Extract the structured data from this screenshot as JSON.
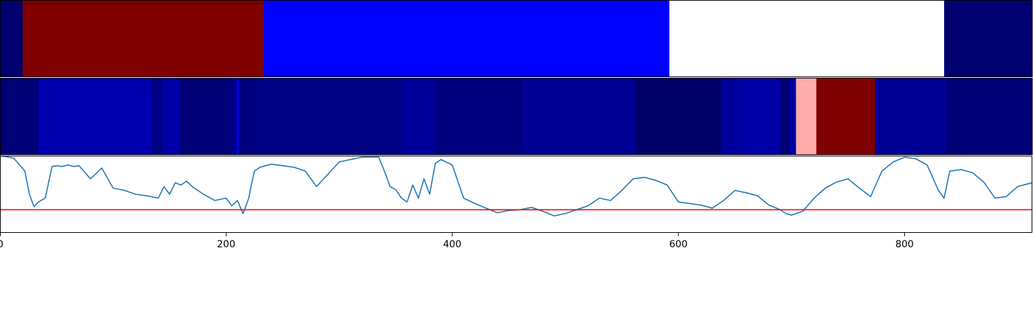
{
  "chart_data": [
    {
      "type": "heatmap",
      "colormap": "seismic",
      "xlim": [
        0,
        913
      ],
      "clim": [
        0,
        1
      ],
      "segments": [
        {
          "start": 0,
          "end": 20,
          "value": 0.05
        },
        {
          "start": 20,
          "end": 233,
          "value": 1.0
        },
        {
          "start": 233,
          "end": 592,
          "value": 0.25
        },
        {
          "start": 592,
          "end": 835,
          "value": 0.5
        },
        {
          "start": 835,
          "end": 913,
          "value": 0.05
        }
      ]
    },
    {
      "type": "heatmap",
      "colormap": "seismic",
      "xlim": [
        0,
        913
      ],
      "clim": [
        0,
        1
      ],
      "segments": [
        {
          "start": 0,
          "end": 34,
          "value": 0.06
        },
        {
          "start": 34,
          "end": 134,
          "value": 0.14
        },
        {
          "start": 134,
          "end": 144,
          "value": 0.08
        },
        {
          "start": 144,
          "end": 159,
          "value": 0.13
        },
        {
          "start": 159,
          "end": 201,
          "value": 0.06
        },
        {
          "start": 201,
          "end": 209,
          "value": 0.08
        },
        {
          "start": 209,
          "end": 211,
          "value": 0.22
        },
        {
          "start": 211,
          "end": 224,
          "value": 0.07
        },
        {
          "start": 224,
          "end": 355,
          "value": 0.08
        },
        {
          "start": 355,
          "end": 385,
          "value": 0.11
        },
        {
          "start": 385,
          "end": 462,
          "value": 0.07
        },
        {
          "start": 462,
          "end": 562,
          "value": 0.1
        },
        {
          "start": 562,
          "end": 638,
          "value": 0.04
        },
        {
          "start": 638,
          "end": 655,
          "value": 0.11
        },
        {
          "start": 655,
          "end": 690,
          "value": 0.13
        },
        {
          "start": 690,
          "end": 698,
          "value": 0.06
        },
        {
          "start": 698,
          "end": 704,
          "value": 0.12
        },
        {
          "start": 704,
          "end": 722,
          "value": 0.58
        },
        {
          "start": 722,
          "end": 774,
          "value": 1.0
        },
        {
          "start": 774,
          "end": 837,
          "value": 0.1
        },
        {
          "start": 837,
          "end": 913,
          "value": 0.06
        }
      ]
    },
    {
      "type": "line",
      "xlim": [
        0,
        913
      ],
      "ylim": [
        0,
        1
      ],
      "xticks": [
        0,
        200,
        400,
        600,
        800
      ],
      "xtick_labels": [
        "0",
        "200",
        "400",
        "600",
        "800"
      ],
      "threshold": 0.3,
      "line_color": "#1f77b4",
      "threshold_color": "#ff0000",
      "series": [
        {
          "x": [
            0,
            12,
            22,
            26,
            30,
            34,
            40,
            46,
            50,
            55,
            60,
            65,
            70,
            80,
            90,
            100,
            110,
            120,
            130,
            140,
            145,
            150,
            155,
            160,
            165,
            170,
            180,
            190,
            200,
            205,
            210,
            215,
            220,
            222,
            225,
            230,
            240,
            250,
            260,
            270,
            280,
            300,
            320,
            335,
            340,
            345,
            350,
            355,
            360,
            365,
            370,
            375,
            380,
            385,
            390,
            400,
            410,
            420,
            430,
            440,
            450,
            460,
            470,
            480,
            490,
            500,
            510,
            520,
            530,
            540,
            550,
            560,
            570,
            580,
            590,
            600,
            620,
            630,
            640,
            650,
            660,
            670,
            680,
            690,
            695,
            700,
            710,
            720,
            730,
            740,
            750,
            760,
            770,
            780,
            790,
            800,
            810,
            820,
            830,
            835,
            840,
            850,
            860,
            870,
            880,
            890,
            900,
            913
          ],
          "y": [
            1.0,
            0.97,
            0.8,
            0.5,
            0.34,
            0.4,
            0.45,
            0.86,
            0.87,
            0.86,
            0.88,
            0.86,
            0.87,
            0.7,
            0.84,
            0.58,
            0.55,
            0.5,
            0.48,
            0.45,
            0.6,
            0.5,
            0.65,
            0.62,
            0.67,
            0.6,
            0.5,
            0.42,
            0.45,
            0.35,
            0.42,
            0.25,
            0.45,
            0.6,
            0.8,
            0.85,
            0.89,
            0.87,
            0.85,
            0.8,
            0.6,
            0.92,
            0.98,
            0.98,
            0.8,
            0.6,
            0.56,
            0.45,
            0.4,
            0.62,
            0.45,
            0.7,
            0.5,
            0.9,
            0.95,
            0.88,
            0.45,
            0.38,
            0.32,
            0.26,
            0.29,
            0.3,
            0.33,
            0.28,
            0.22,
            0.25,
            0.3,
            0.35,
            0.45,
            0.42,
            0.55,
            0.7,
            0.72,
            0.68,
            0.62,
            0.4,
            0.36,
            0.32,
            0.42,
            0.55,
            0.52,
            0.48,
            0.36,
            0.3,
            0.25,
            0.23,
            0.28,
            0.45,
            0.58,
            0.66,
            0.7,
            0.58,
            0.47,
            0.8,
            0.92,
            0.98,
            0.96,
            0.88,
            0.55,
            0.45,
            0.8,
            0.82,
            0.78,
            0.66,
            0.45,
            0.47,
            0.6,
            0.65
          ]
        }
      ]
    }
  ]
}
